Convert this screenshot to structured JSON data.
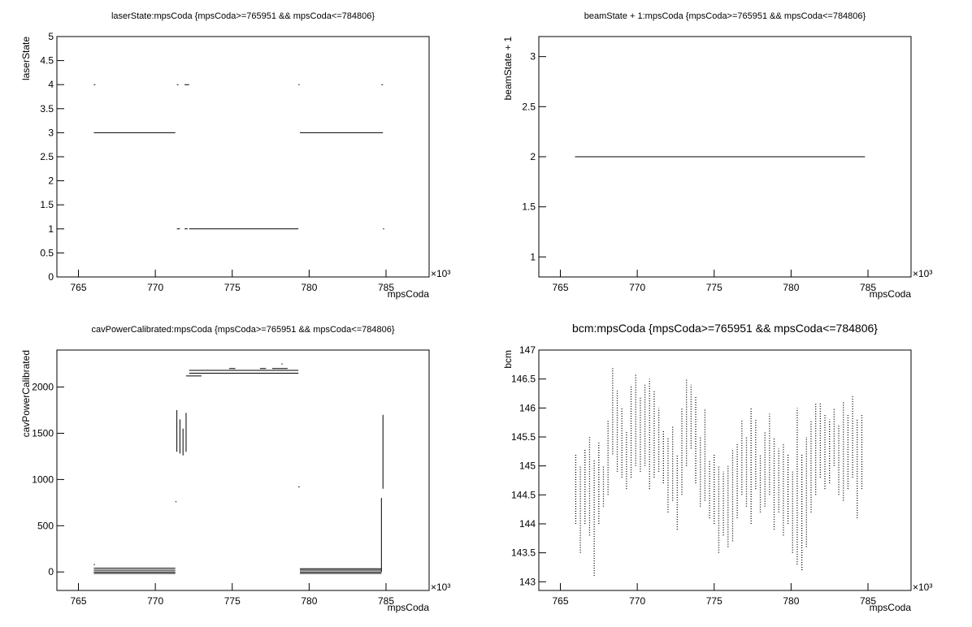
{
  "chart_data": [
    {
      "type": "line",
      "title": "laserState:mpsCoda {mpsCoda>=765951 && mpsCoda<=784806}",
      "xlabel": "mpsCoda",
      "ylabel": "laserState",
      "x_exponent": "×10³",
      "xlim": [
        763.6,
        787.8
      ],
      "xticks": [
        765,
        770,
        775,
        780,
        785
      ],
      "ylim": [
        0,
        5
      ],
      "yticks": [
        0,
        0.5,
        1,
        1.5,
        2,
        2.5,
        3,
        3.5,
        4,
        4.5,
        5
      ],
      "x": [
        766.0,
        771.3,
        null,
        772.2,
        779.3,
        null,
        779.4,
        784.8,
        null,
        766.0,
        766.1,
        null,
        771.4,
        771.5,
        null,
        771.9,
        772.2,
        null,
        779.3,
        null,
        784.7,
        784.8,
        null,
        771.4,
        771.6,
        null,
        771.9,
        772.1,
        null,
        784.8
      ],
      "y": [
        3,
        3,
        null,
        1,
        1,
        null,
        3,
        3,
        null,
        4,
        4,
        null,
        4,
        4,
        null,
        4,
        4,
        null,
        4,
        null,
        4,
        4,
        null,
        1,
        1,
        null,
        1,
        1,
        null,
        1
      ],
      "color": "#000000"
    },
    {
      "type": "line",
      "title": "beamState + 1:mpsCoda {mpsCoda>=765951 && mpsCoda<=784806}",
      "xlabel": "mpsCoda",
      "ylabel": "beamState + 1",
      "x_exponent": "×10³",
      "xlim": [
        763.6,
        787.8
      ],
      "xticks": [
        765,
        770,
        775,
        780,
        785
      ],
      "ylim": [
        0.8,
        3.2
      ],
      "yticks": [
        1,
        1.5,
        2,
        2.5,
        3
      ],
      "x": [
        765.951,
        784.806
      ],
      "y": [
        2,
        2
      ],
      "color": "#000000"
    },
    {
      "type": "line",
      "title": "cavPowerCalibrated:mpsCoda {mpsCoda>=765951 && mpsCoda<=784806}",
      "xlabel": "mpsCoda",
      "ylabel": "cavPowerCalibrated",
      "x_exponent": "×10³",
      "xlim": [
        763.6,
        787.8
      ],
      "xticks": [
        765,
        770,
        775,
        780,
        785
      ],
      "ylim": [
        -200,
        2400
      ],
      "yticks": [
        0,
        500,
        1000,
        1500,
        2000
      ],
      "x": [
        766.0,
        771.3,
        null,
        766.0,
        771.3,
        null,
        766.0,
        771.3,
        null,
        766.0,
        771.3,
        null,
        779.4,
        784.7,
        null,
        779.4,
        784.7,
        null,
        779.4,
        784.7,
        null,
        779.4,
        784.7,
        null,
        771.4,
        771.4,
        null,
        771.6,
        771.6,
        null,
        771.8,
        771.8,
        null,
        772.0,
        772.0,
        null,
        772.2,
        779.3,
        null,
        772.2,
        779.3,
        null,
        772.0,
        773.0,
        null,
        774.8,
        775.2,
        null,
        776.8,
        777.2,
        null,
        777.6,
        778.6,
        null,
        778.2,
        null,
        784.7,
        784.7,
        null,
        784.8,
        784.8,
        null,
        766.0,
        null,
        771.3,
        null,
        779.3
      ],
      "y": [
        40,
        40,
        null,
        20,
        20,
        null,
        0,
        0,
        null,
        -15,
        -15,
        null,
        35,
        35,
        null,
        20,
        20,
        null,
        0,
        0,
        null,
        -15,
        -15,
        null,
        1300,
        1750,
        null,
        1280,
        1650,
        null,
        1260,
        1550,
        null,
        1300,
        1720,
        null,
        2180,
        2180,
        null,
        2150,
        2150,
        null,
        2120,
        2120,
        null,
        2200,
        2200,
        null,
        2200,
        2200,
        null,
        2200,
        2200,
        null,
        2250,
        null,
        0,
        800,
        null,
        900,
        1700,
        null,
        80,
        null,
        760,
        null,
        920
      ],
      "color": "#000000"
    },
    {
      "type": "line",
      "title": "bcm:mpsCoda {mpsCoda>=765951 && mpsCoda<=784806}",
      "xlabel": "mpsCoda",
      "ylabel": "bcm",
      "x_exponent": "×10³",
      "xlim": [
        763.6,
        787.8
      ],
      "xticks": [
        765,
        770,
        775,
        780,
        785
      ],
      "ylim": [
        142.85,
        147
      ],
      "yticks": [
        143,
        143.5,
        144,
        144.5,
        145,
        145.5,
        146,
        146.5,
        147
      ],
      "x": [
        766.0,
        766.0,
        null,
        766.3,
        766.3,
        null,
        766.6,
        766.6,
        null,
        766.9,
        766.9,
        null,
        767.2,
        767.2,
        null,
        767.5,
        767.5,
        null,
        767.8,
        767.8,
        null,
        768.1,
        768.1,
        null,
        768.4,
        768.4,
        null,
        768.7,
        768.7,
        null,
        769.0,
        769.0,
        null,
        769.3,
        769.3,
        null,
        769.6,
        769.6,
        null,
        769.9,
        769.9,
        null,
        770.2,
        770.2,
        null,
        770.5,
        770.5,
        null,
        770.8,
        770.8,
        null,
        771.1,
        771.1,
        null,
        771.4,
        771.4,
        null,
        771.7,
        771.7,
        null,
        772.0,
        772.0,
        null,
        772.3,
        772.3,
        null,
        772.6,
        772.6,
        null,
        772.9,
        772.9,
        null,
        773.2,
        773.2,
        null,
        773.5,
        773.5,
        null,
        773.8,
        773.8,
        null,
        774.1,
        774.1,
        null,
        774.4,
        774.4,
        null,
        774.7,
        774.7,
        null,
        775.0,
        775.0,
        null,
        775.3,
        775.3,
        null,
        775.6,
        775.6,
        null,
        775.9,
        775.9,
        null,
        776.2,
        776.2,
        null,
        776.5,
        776.5,
        null,
        776.8,
        776.8,
        null,
        777.1,
        777.1,
        null,
        777.4,
        777.4,
        null,
        777.7,
        777.7,
        null,
        778.0,
        778.0,
        null,
        778.3,
        778.3,
        null,
        778.6,
        778.6,
        null,
        778.9,
        778.9,
        null,
        779.2,
        779.2,
        null,
        779.5,
        779.5,
        null,
        779.8,
        779.8,
        null,
        780.1,
        780.1,
        null,
        780.4,
        780.4,
        null,
        780.7,
        780.7,
        null,
        781.0,
        781.0,
        null,
        781.3,
        781.3,
        null,
        781.6,
        781.6,
        null,
        781.9,
        781.9,
        null,
        782.2,
        782.2,
        null,
        782.5,
        782.5,
        null,
        782.8,
        782.8,
        null,
        783.1,
        783.1,
        null,
        783.4,
        783.4,
        null,
        783.7,
        783.7,
        null,
        784.0,
        784.0,
        null,
        784.3,
        784.3,
        null,
        784.6,
        784.6
      ],
      "y": [
        144.0,
        145.2,
        null,
        143.5,
        145.0,
        null,
        144.0,
        145.3,
        null,
        143.8,
        145.5,
        null,
        143.1,
        145.1,
        null,
        144.0,
        145.4,
        null,
        144.3,
        145.0,
        null,
        144.5,
        145.8,
        null,
        145.2,
        146.7,
        null,
        144.9,
        146.3,
        null,
        144.8,
        146.0,
        null,
        144.6,
        145.6,
        null,
        144.8,
        146.4,
        null,
        145.0,
        146.6,
        null,
        144.9,
        146.2,
        null,
        145.0,
        146.4,
        null,
        144.6,
        146.5,
        null,
        144.8,
        146.3,
        null,
        144.9,
        146.0,
        null,
        144.7,
        145.6,
        null,
        144.2,
        145.5,
        null,
        144.4,
        145.7,
        null,
        143.9,
        145.2,
        null,
        144.5,
        146.0,
        null,
        145.0,
        146.5,
        null,
        145.3,
        146.4,
        null,
        144.7,
        146.2,
        null,
        144.3,
        145.5,
        null,
        144.4,
        146.0,
        null,
        144.1,
        145.1,
        null,
        144.0,
        145.2,
        null,
        143.5,
        145.0,
        null,
        143.8,
        144.9,
        null,
        143.6,
        145.0,
        null,
        143.7,
        145.3,
        null,
        144.1,
        145.4,
        null,
        144.5,
        145.8,
        null,
        144.3,
        145.5,
        null,
        144.0,
        146.0,
        null,
        144.6,
        145.8,
        null,
        144.2,
        145.2,
        null,
        144.3,
        145.6,
        null,
        144.5,
        145.9,
        null,
        143.9,
        145.5,
        null,
        144.2,
        145.3,
        null,
        143.8,
        145.4,
        null,
        144.0,
        145.2,
        null,
        143.5,
        144.9,
        null,
        143.3,
        146.0,
        null,
        143.2,
        145.2,
        null,
        143.6,
        145.5,
        null,
        144.2,
        145.8,
        null,
        144.5,
        146.1,
        null,
        144.8,
        146.1,
        null,
        144.6,
        145.9,
        null,
        144.7,
        145.8,
        null,
        145.0,
        146.0,
        null,
        144.5,
        145.7,
        null,
        144.4,
        146.1,
        null,
        144.6,
        145.9,
        null,
        144.8,
        146.2,
        null,
        144.1,
        145.8,
        null,
        144.6,
        145.9
      ],
      "color": "#000000",
      "dotted": true
    }
  ]
}
